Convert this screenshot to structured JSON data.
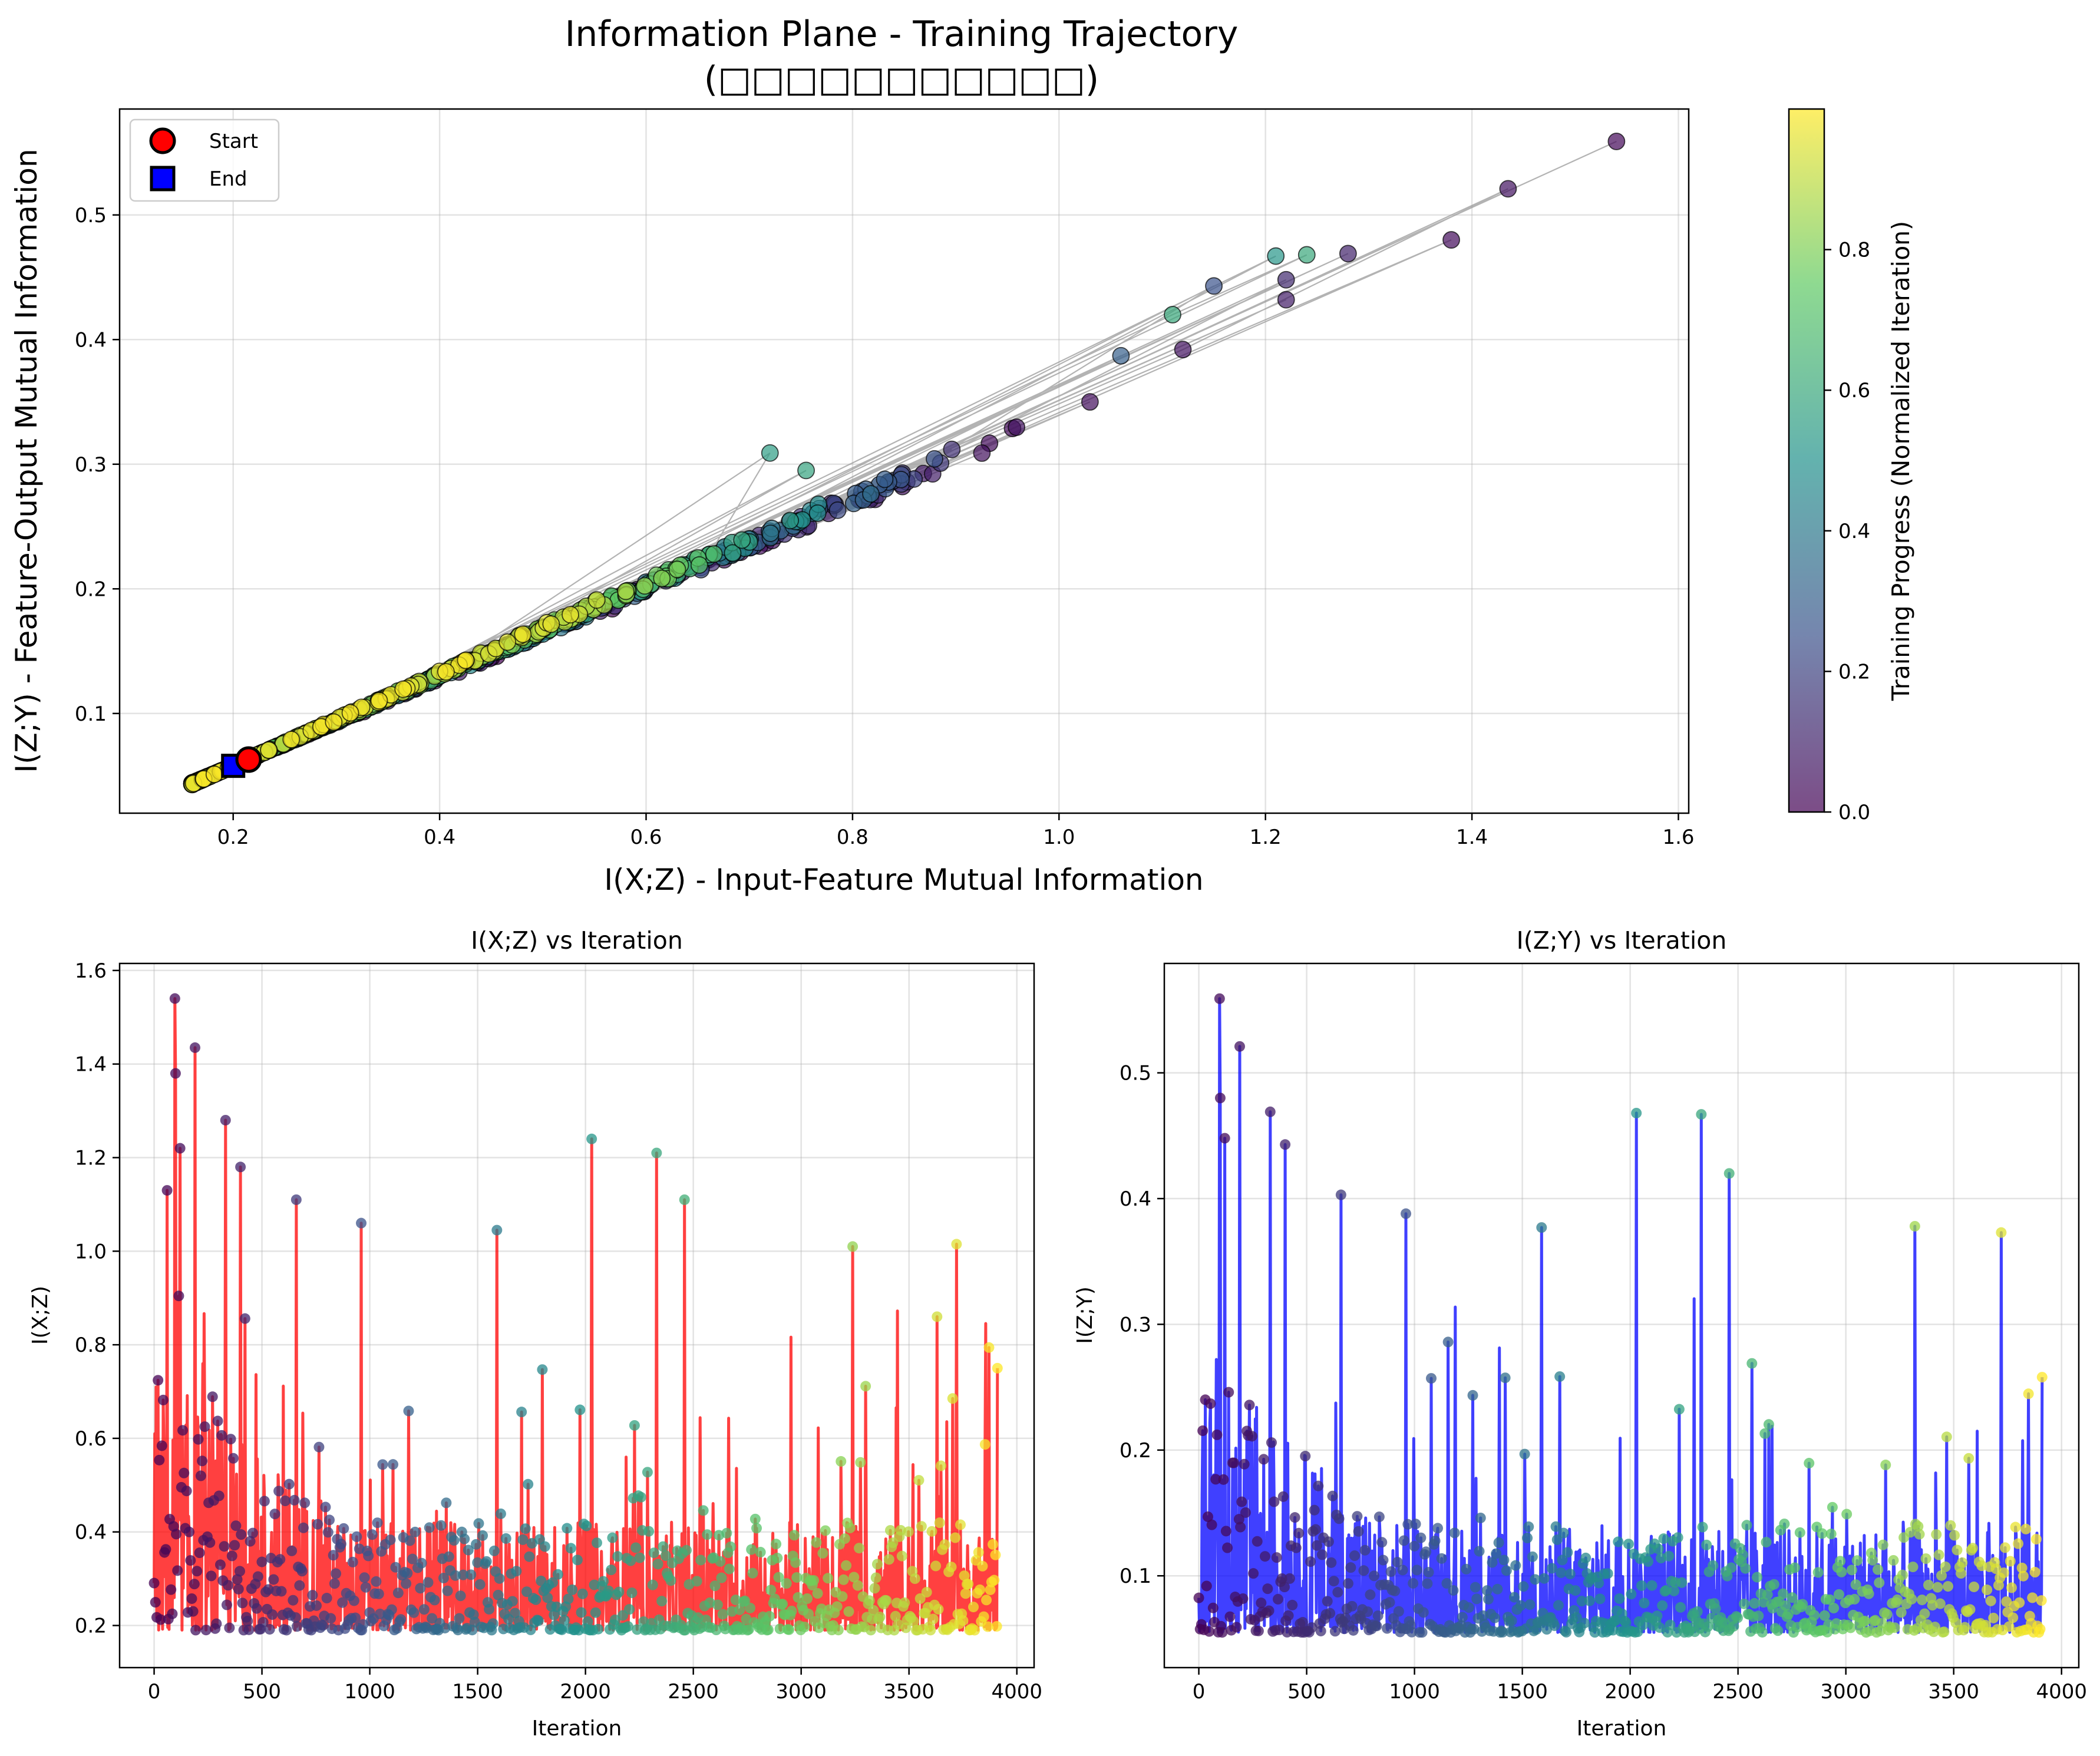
{
  "figure": {
    "title_line1": "Information Plane - Training Trajectory",
    "title_line2": "(□□□□□□□□□□□)"
  },
  "colors": {
    "viridis": [
      "#440154",
      "#3b528b",
      "#21918c",
      "#5ec962",
      "#fde725"
    ],
    "trajectory_line": "#999999",
    "start_marker": "#ff0000",
    "end_marker": "#0000ff",
    "ixz_series": "#ff0000",
    "izy_series": "#0000ff"
  },
  "chart_data": [
    {
      "type": "scatter",
      "name": "information-plane",
      "title": "",
      "xlabel": "I(X;Z) - Input-Feature Mutual Information",
      "ylabel": "I(Z;Y) - Feature-Output Mutual Information",
      "xlim": [
        0.09,
        1.61
      ],
      "ylim": [
        0.02,
        0.585
      ],
      "xticks": [
        0.2,
        0.4,
        0.6,
        0.8,
        1.0,
        1.2,
        1.4,
        1.6
      ],
      "xtick_labels": [
        "0.2",
        "0.4",
        "0.6",
        "0.8",
        "1.0",
        "1.2",
        "1.4",
        "1.6"
      ],
      "yticks": [
        0.1,
        0.2,
        0.3,
        0.4,
        0.5
      ],
      "ytick_labels": [
        "0.1",
        "0.2",
        "0.3",
        "0.4",
        "0.5"
      ],
      "grid": true,
      "legend": {
        "placement": "top-left",
        "entries": [
          "Start",
          "End"
        ]
      },
      "colorbar": {
        "label": "Training Progress (Normalized Iteration)",
        "ticks": [
          0.0,
          0.2,
          0.4,
          0.6,
          0.8
        ],
        "tick_labels": [
          "0.0",
          "0.2",
          "0.4",
          "0.6",
          "0.8"
        ],
        "range": [
          0.0,
          1.0
        ]
      },
      "start": {
        "x": 0.215,
        "y": 0.063
      },
      "end": {
        "x": 0.2,
        "y": 0.058
      },
      "notable_points": [
        {
          "x": 1.54,
          "y": 0.559,
          "progress": 0.02
        },
        {
          "x": 1.435,
          "y": 0.521,
          "progress": 0.05
        },
        {
          "x": 1.38,
          "y": 0.48,
          "progress": 0.03
        },
        {
          "x": 1.28,
          "y": 0.469,
          "progress": 0.1
        },
        {
          "x": 1.24,
          "y": 0.468,
          "progress": 0.6
        },
        {
          "x": 1.21,
          "y": 0.467,
          "progress": 0.52
        },
        {
          "x": 1.22,
          "y": 0.448,
          "progress": 0.12
        },
        {
          "x": 1.22,
          "y": 0.432,
          "progress": 0.08
        },
        {
          "x": 1.15,
          "y": 0.443,
          "progress": 0.25
        },
        {
          "x": 1.11,
          "y": 0.42,
          "progress": 0.6
        },
        {
          "x": 1.12,
          "y": 0.392,
          "progress": 0.05
        },
        {
          "x": 1.06,
          "y": 0.387,
          "progress": 0.3
        },
        {
          "x": 1.03,
          "y": 0.35,
          "progress": 0.04
        },
        {
          "x": 0.72,
          "y": 0.309,
          "progress": 0.55
        },
        {
          "x": 0.755,
          "y": 0.295,
          "progress": 0.58
        }
      ],
      "envelope": {
        "x_min": 0.16,
        "x_max": 1.0,
        "lower_slope": 0.345,
        "upper_slope": 0.37,
        "intercept_at_0_2": 0.058
      }
    },
    {
      "type": "line",
      "name": "ixz-vs-iteration",
      "title": "I(X;Z) vs Iteration",
      "xlabel": "Iteration",
      "ylabel": "I(X;Z)",
      "xlim": [
        -160,
        4080
      ],
      "ylim": [
        0.11,
        1.615
      ],
      "xticks": [
        0,
        500,
        1000,
        1500,
        2000,
        2500,
        3000,
        3500,
        4000
      ],
      "xtick_labels": [
        "0",
        "500",
        "1000",
        "1500",
        "2000",
        "2500",
        "3000",
        "3500",
        "4000"
      ],
      "yticks": [
        0.2,
        0.4,
        0.6,
        0.8,
        1.0,
        1.2,
        1.4,
        1.6
      ],
      "ytick_labels": [
        "0.2",
        "0.4",
        "0.6",
        "0.8",
        "1.0",
        "1.2",
        "1.4",
        "1.6"
      ],
      "grid": true,
      "iterations": [
        0,
        3910
      ],
      "baseline": 0.19,
      "peaks": [
        {
          "x": 95,
          "y": 1.54
        },
        {
          "x": 100,
          "y": 1.38
        },
        {
          "x": 120,
          "y": 1.22
        },
        {
          "x": 190,
          "y": 1.435
        },
        {
          "x": 60,
          "y": 1.13
        },
        {
          "x": 330,
          "y": 1.28
        },
        {
          "x": 400,
          "y": 1.18
        },
        {
          "x": 660,
          "y": 1.11
        },
        {
          "x": 960,
          "y": 1.06
        },
        {
          "x": 1590,
          "y": 1.045
        },
        {
          "x": 2030,
          "y": 1.24
        },
        {
          "x": 2330,
          "y": 1.21
        },
        {
          "x": 2460,
          "y": 1.11
        },
        {
          "x": 3240,
          "y": 1.01
        },
        {
          "x": 3720,
          "y": 1.015
        },
        {
          "x": 3630,
          "y": 0.86
        },
        {
          "x": 3910,
          "y": 0.75
        }
      ]
    },
    {
      "type": "line",
      "name": "izy-vs-iteration",
      "title": "I(Z;Y) vs Iteration",
      "xlabel": "Iteration",
      "ylabel": "I(Z;Y)",
      "xlim": [
        -160,
        4080
      ],
      "ylim": [
        0.027,
        0.587
      ],
      "xticks": [
        0,
        500,
        1000,
        1500,
        2000,
        2500,
        3000,
        3500,
        4000
      ],
      "xtick_labels": [
        "0",
        "500",
        "1000",
        "1500",
        "2000",
        "2500",
        "3000",
        "3500",
        "4000"
      ],
      "yticks": [
        0.1,
        0.2,
        0.3,
        0.4,
        0.5
      ],
      "ytick_labels": [
        "0.1",
        "0.2",
        "0.3",
        "0.4",
        "0.5"
      ],
      "grid": true,
      "iterations": [
        0,
        3910
      ],
      "baseline": 0.055,
      "peaks": [
        {
          "x": 95,
          "y": 0.559
        },
        {
          "x": 190,
          "y": 0.521
        },
        {
          "x": 100,
          "y": 0.48
        },
        {
          "x": 330,
          "y": 0.469
        },
        {
          "x": 120,
          "y": 0.448
        },
        {
          "x": 400,
          "y": 0.443
        },
        {
          "x": 660,
          "y": 0.403
        },
        {
          "x": 960,
          "y": 0.388
        },
        {
          "x": 1590,
          "y": 0.377
        },
        {
          "x": 2030,
          "y": 0.468
        },
        {
          "x": 2330,
          "y": 0.467
        },
        {
          "x": 2460,
          "y": 0.42
        },
        {
          "x": 3320,
          "y": 0.378
        },
        {
          "x": 3720,
          "y": 0.373
        },
        {
          "x": 3910,
          "y": 0.258
        }
      ]
    }
  ]
}
